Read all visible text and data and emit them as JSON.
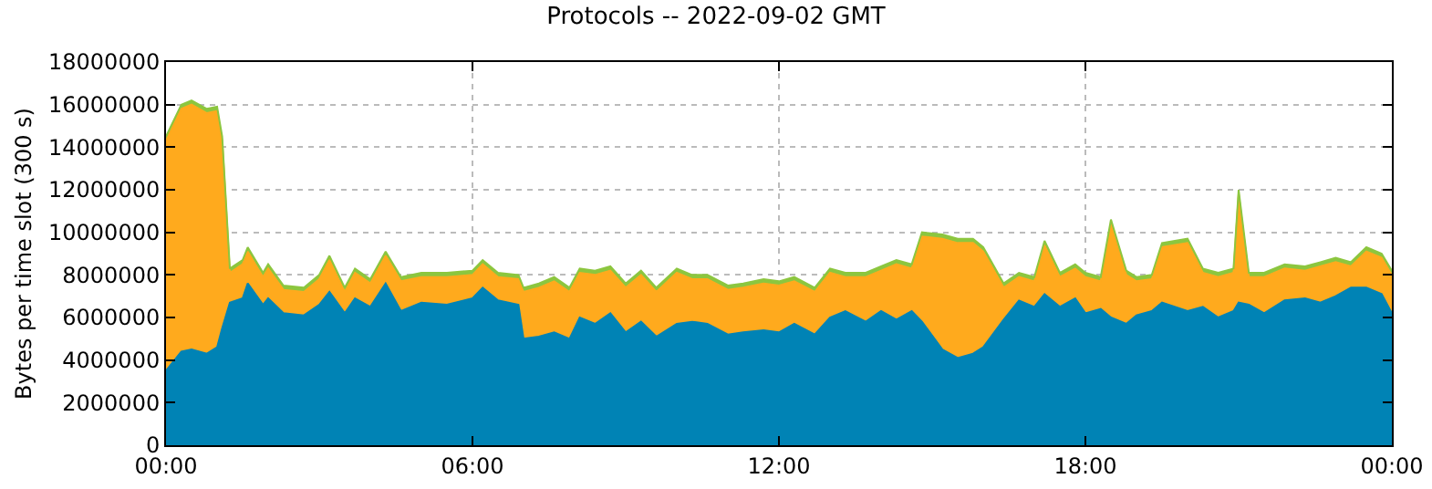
{
  "chart_data": {
    "type": "area",
    "stacked": true,
    "title": "Protocols -- 2022-09-02 GMT",
    "ylabel": "Bytes per time slot (300 s)",
    "x": [
      0,
      0.3,
      0.5,
      0.8,
      1.0,
      1.1,
      1.25,
      1.5,
      1.6,
      1.9,
      2.0,
      2.3,
      2.7,
      3.0,
      3.2,
      3.5,
      3.7,
      4.0,
      4.3,
      4.6,
      5.0,
      5.5,
      6.0,
      6.2,
      6.5,
      6.9,
      7.0,
      7.3,
      7.6,
      7.9,
      8.1,
      8.4,
      8.7,
      9.0,
      9.3,
      9.6,
      10.0,
      10.3,
      10.6,
      11.0,
      11.3,
      11.7,
      12.0,
      12.3,
      12.7,
      13.0,
      13.3,
      13.7,
      14.0,
      14.3,
      14.6,
      14.8,
      15.2,
      15.5,
      15.8,
      16.0,
      16.4,
      16.7,
      17.0,
      17.2,
      17.5,
      17.8,
      18.0,
      18.3,
      18.5,
      18.8,
      19.0,
      19.3,
      19.5,
      20.0,
      20.3,
      20.6,
      20.9,
      21.0,
      21.2,
      21.5,
      21.9,
      22.3,
      22.6,
      22.9,
      23.2,
      23.5,
      23.8,
      24
    ],
    "series": [
      {
        "color": "#0083b5",
        "values": [
          3500000,
          4400000,
          4500000,
          4300000,
          4600000,
          5500000,
          6700000,
          6900000,
          7600000,
          6600000,
          6900000,
          6200000,
          6100000,
          6600000,
          7200000,
          6200000,
          6900000,
          6500000,
          7600000,
          6300000,
          6700000,
          6600000,
          6900000,
          7400000,
          6800000,
          6600000,
          5000000,
          5100000,
          5300000,
          5000000,
          6000000,
          5700000,
          6200000,
          5300000,
          5800000,
          5100000,
          5700000,
          5800000,
          5700000,
          5200000,
          5300000,
          5400000,
          5300000,
          5700000,
          5200000,
          6000000,
          6300000,
          5800000,
          6300000,
          5900000,
          6300000,
          5800000,
          4500000,
          4100000,
          4300000,
          4600000,
          5900000,
          6800000,
          6500000,
          7100000,
          6500000,
          6900000,
          6200000,
          6400000,
          6000000,
          5700000,
          6100000,
          6300000,
          6700000,
          6300000,
          6500000,
          6000000,
          6300000,
          6700000,
          6600000,
          6200000,
          6800000,
          6900000,
          6700000,
          7000000,
          7400000,
          7400000,
          7100000,
          6200000
        ]
      },
      {
        "color": "#ffaa1d",
        "values": [
          10800000,
          11400000,
          11500000,
          11300000,
          11100000,
          8800000,
          1400000,
          1600000,
          1500000,
          1300000,
          1400000,
          1100000,
          1100000,
          1200000,
          1500000,
          1000000,
          1200000,
          1100000,
          1300000,
          1400000,
          1200000,
          1300000,
          1100000,
          1100000,
          1100000,
          1200000,
          2200000,
          2300000,
          2400000,
          2200000,
          2100000,
          2300000,
          2000000,
          2100000,
          2200000,
          2100000,
          2400000,
          2000000,
          2100000,
          2100000,
          2100000,
          2200000,
          2200000,
          2000000,
          2000000,
          2100000,
          1600000,
          2100000,
          1900000,
          2600000,
          2000000,
          4000000,
          5200000,
          5400000,
          5200000,
          4500000,
          1500000,
          1100000,
          1200000,
          2300000,
          1400000,
          1400000,
          1700000,
          1300000,
          4400000,
          2300000,
          1600000,
          1500000,
          2600000,
          3200000,
          1600000,
          1900000,
          1800000,
          5100000,
          1300000,
          1700000,
          1500000,
          1300000,
          1700000,
          1600000,
          1000000,
          1700000,
          1700000,
          1800000
        ]
      },
      {
        "color": "#8cc63f",
        "values": [
          200000,
          200000,
          200000,
          200000,
          200000,
          200000,
          200000,
          200000,
          200000,
          200000,
          200000,
          200000,
          200000,
          200000,
          200000,
          200000,
          200000,
          200000,
          200000,
          200000,
          200000,
          200000,
          200000,
          200000,
          200000,
          200000,
          200000,
          200000,
          200000,
          200000,
          200000,
          200000,
          200000,
          200000,
          200000,
          200000,
          200000,
          200000,
          200000,
          200000,
          200000,
          200000,
          200000,
          200000,
          200000,
          200000,
          200000,
          200000,
          200000,
          200000,
          200000,
          200000,
          200000,
          200000,
          200000,
          200000,
          200000,
          200000,
          200000,
          200000,
          200000,
          200000,
          200000,
          200000,
          200000,
          200000,
          200000,
          200000,
          200000,
          200000,
          200000,
          200000,
          200000,
          200000,
          200000,
          200000,
          200000,
          200000,
          200000,
          200000,
          200000,
          200000,
          200000,
          200000
        ]
      }
    ],
    "xlim": [
      0,
      24
    ],
    "xticks": [
      {
        "value": 0,
        "label": "00:00"
      },
      {
        "value": 6,
        "label": "06:00"
      },
      {
        "value": 12,
        "label": "12:00"
      },
      {
        "value": 18,
        "label": "18:00"
      },
      {
        "value": 24,
        "label": "00:00"
      }
    ],
    "ylim": [
      0,
      18000000
    ],
    "yticks": [
      0,
      2000000,
      4000000,
      6000000,
      8000000,
      10000000,
      12000000,
      14000000,
      16000000,
      18000000
    ],
    "grid": true
  }
}
